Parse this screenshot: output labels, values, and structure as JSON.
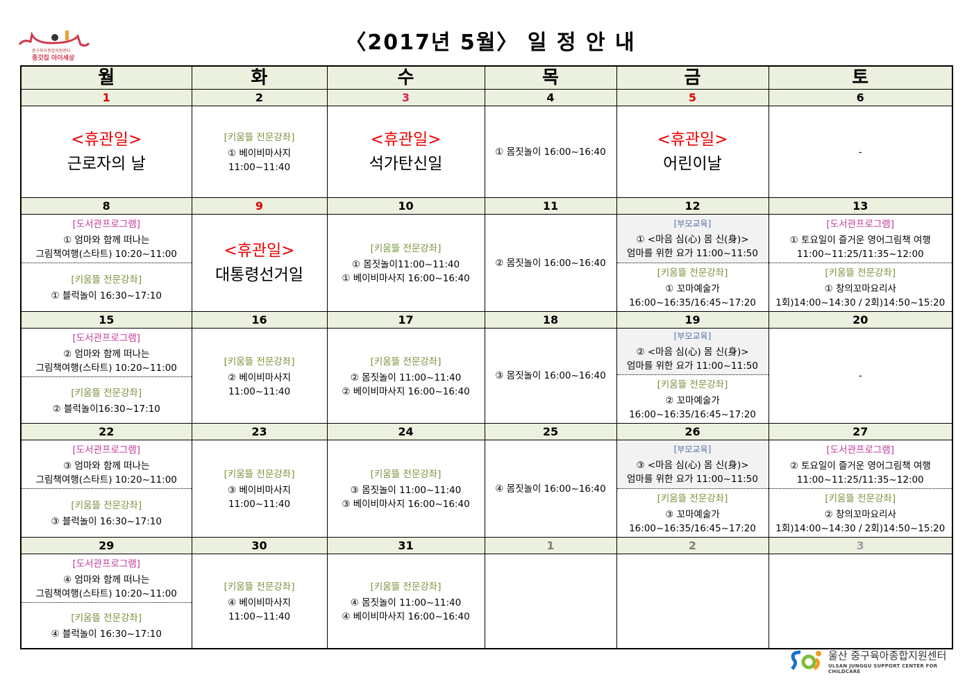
{
  "title": "〈2017년 5월〉 일 정 안 내",
  "logo": {
    "line1": "중구육아종합지원센터",
    "line2": "종갓집 아이세상"
  },
  "footer": {
    "korean": "울산 중구육아종합지원센터",
    "english": "ULSAN JUNGGU SUPPORT CENTER FOR CHILDCARE"
  },
  "colors": {
    "header_bg": "#ebf1de",
    "holiday_red": "#e00000",
    "library": "#c0399b",
    "kium": "#77933c",
    "parent": "#4f6fa8",
    "next_month": "#808080"
  },
  "weekdays": [
    "월",
    "화",
    "수",
    "목",
    "금",
    "토"
  ],
  "weeks": [
    {
      "days": [
        {
          "date": "1",
          "date_color": "#e00000",
          "holiday": {
            "tag": "<휴관일>",
            "name": "근로자의 날"
          }
        },
        {
          "date": "2",
          "sections": [
            {
              "label": "[키움뜰 전문강좌]",
              "type": "kium",
              "lines": [
                "① 베이비마사지",
                "11:00~11:40"
              ]
            }
          ]
        },
        {
          "date": "3",
          "date_color": "#e6195a",
          "holiday": {
            "tag": "<휴관일>",
            "name": "석가탄신일"
          }
        },
        {
          "date": "4",
          "sections": [
            {
              "lines": [
                "① 몸짓놀이 16:00~16:40"
              ]
            }
          ]
        },
        {
          "date": "5",
          "date_color": "#e00000",
          "holiday": {
            "tag": "<휴관일>",
            "name": "어린이날"
          }
        },
        {
          "date": "6",
          "sections": [
            {
              "lines": [
                "-"
              ]
            }
          ]
        }
      ]
    },
    {
      "days": [
        {
          "date": "8",
          "sections": [
            {
              "label": "[도서관프로그램]",
              "type": "library",
              "lines": [
                "① 엄마와 함께 떠나는",
                "그림책여행(스타트) 10:20~11:00"
              ]
            },
            {
              "label": "[키움뜰 전문강좌]",
              "type": "kium",
              "lines": [
                "① 블럭놀이 16:30~17:10"
              ]
            }
          ]
        },
        {
          "date": "9",
          "date_color": "#e00000",
          "holiday": {
            "tag": "<휴관일>",
            "name": "대통령선거일"
          }
        },
        {
          "date": "10",
          "sections": [
            {
              "label": "[키움뜰 전문강좌]",
              "type": "kium",
              "lines": [
                "① 몸짓놀이11:00~11:40",
                "① 베이비마사지 16:00~16:40"
              ]
            }
          ]
        },
        {
          "date": "11",
          "sections": [
            {
              "lines": [
                "② 몸짓놀이 16:00~16:40"
              ]
            }
          ]
        },
        {
          "date": "12",
          "sections": [
            {
              "label": "[부모교육]",
              "type": "parent",
              "gray": true,
              "lines": [
                "① <마음 심(心) 몸 신(身)>",
                "엄마를 위한 요가 11:00~11:50"
              ]
            },
            {
              "label": "[키움뜰 전문강좌]",
              "type": "kium",
              "lines": [
                "① 꼬마예술가",
                "16:00~16:35/16:45~17:20"
              ]
            }
          ]
        },
        {
          "date": "13",
          "sections": [
            {
              "label": "[도서관프로그램]",
              "type": "library",
              "lines": [
                "① 토요일이 즐거운 영어그림책 여행",
                "11:00~11:25/11:35~12:00"
              ]
            },
            {
              "label": "[키움뜰 전문강좌]",
              "type": "kium",
              "lines": [
                "① 창의꼬마요리사",
                "1회)14:00~14:30 / 2회)14:50~15:20"
              ]
            }
          ]
        }
      ]
    },
    {
      "days": [
        {
          "date": "15",
          "sections": [
            {
              "label": "[도서관프로그램]",
              "type": "library",
              "lines": [
                "② 엄마와 함께 떠나는",
                "그림책여행(스타트) 10:20~11:00"
              ]
            },
            {
              "label": "[키움뜰 전문강좌]",
              "type": "kium",
              "lines": [
                "② 블럭놀이16:30~17:10"
              ]
            }
          ]
        },
        {
          "date": "16",
          "sections": [
            {
              "label": "[키움뜰 전문강좌]",
              "type": "kium",
              "lines": [
                "② 베이비마사지",
                "11:00~11:40"
              ]
            }
          ]
        },
        {
          "date": "17",
          "sections": [
            {
              "label": "[키움뜰 전문강좌]",
              "type": "kium",
              "lines": [
                "② 몸짓놀이 11:00~11:40",
                "② 베이비마사지 16:00~16:40"
              ]
            }
          ]
        },
        {
          "date": "18",
          "sections": [
            {
              "lines": [
                "③ 몸짓놀이 16:00~16:40"
              ]
            }
          ]
        },
        {
          "date": "19",
          "sections": [
            {
              "label": "[부모교육]",
              "type": "parent",
              "gray": true,
              "lines": [
                "② <마음 심(心) 몸 신(身)>",
                "엄마를 위한 요가 11:00~11:50"
              ]
            },
            {
              "label": "[키움뜰 전문강좌]",
              "type": "kium",
              "lines": [
                "② 꼬마예술가",
                "16:00~16:35/16:45~17:20"
              ]
            }
          ]
        },
        {
          "date": "20",
          "sections": [
            {
              "lines": [
                "-"
              ]
            }
          ]
        }
      ]
    },
    {
      "days": [
        {
          "date": "22",
          "sections": [
            {
              "label": "[도서관프로그램]",
              "type": "library",
              "lines": [
                "③ 엄마와 함께 떠나는",
                "그림책여행(스타트) 10:20~11:00"
              ]
            },
            {
              "label": "[키움뜰 전문강좌]",
              "type": "kium",
              "lines": [
                "③ 블럭놀이 16:30~17:10"
              ]
            }
          ]
        },
        {
          "date": "23",
          "sections": [
            {
              "label": "[키움뜰 전문강좌]",
              "type": "kium",
              "lines": [
                "③ 베이비마사지",
                "11:00~11:40"
              ]
            }
          ]
        },
        {
          "date": "24",
          "sections": [
            {
              "label": "[키움뜰 전문강좌]",
              "type": "kium",
              "lines": [
                "③ 몸짓놀이 11:00~11:40",
                "③ 베이비마사지 16:00~16:40"
              ]
            }
          ]
        },
        {
          "date": "25",
          "sections": [
            {
              "lines": [
                "④ 몸짓놀이 16:00~16:40"
              ]
            }
          ]
        },
        {
          "date": "26",
          "sections": [
            {
              "label": "[부모교육]",
              "type": "parent",
              "gray": true,
              "lines": [
                "③ <마음 심(心) 몸 신(身)>",
                "엄마를 위한 요가 11:00~11:50"
              ]
            },
            {
              "label": "[키움뜰 전문강좌]",
              "type": "kium",
              "lines": [
                "③ 꼬마예술가",
                "16:00~16:35/16:45~17:20"
              ]
            }
          ]
        },
        {
          "date": "27",
          "sections": [
            {
              "label": "[도서관프로그램]",
              "type": "library",
              "lines": [
                "② 토요일이 즐거운 영어그림책 여행",
                "11:00~11:25/11:35~12:00"
              ]
            },
            {
              "label": "[키움뜰 전문강좌]",
              "type": "kium",
              "lines": [
                "② 창의꼬마요리사",
                "1회)14:00~14:30 / 2회)14:50~15:20"
              ]
            }
          ]
        }
      ]
    },
    {
      "days": [
        {
          "date": "29",
          "sections": [
            {
              "label": "[도서관프로그램]",
              "type": "library",
              "lines": [
                "④ 엄마와 함께 떠나는",
                "그림책여행(스타트) 10:20~11:00"
              ]
            },
            {
              "label": "[키움뜰 전문강좌]",
              "type": "kium",
              "lines": [
                "④ 블럭놀이 16:30~17:10"
              ]
            }
          ]
        },
        {
          "date": "30",
          "sections": [
            {
              "label": "[키움뜰 전문강좌]",
              "type": "kium",
              "lines": [
                "④ 베이비마사지",
                "11:00~11:40"
              ]
            }
          ]
        },
        {
          "date": "31",
          "sections": [
            {
              "label": "[키움뜰 전문강좌]",
              "type": "kium",
              "lines": [
                "④ 몸짓놀이 11:00~11:40",
                "④ 베이비마사지 16:00~16:40"
              ]
            }
          ]
        },
        {
          "date": "1",
          "date_color": "#808080"
        },
        {
          "date": "2",
          "date_color": "#808080"
        },
        {
          "date": "3",
          "date_color": "#a0a0a0"
        }
      ]
    }
  ]
}
